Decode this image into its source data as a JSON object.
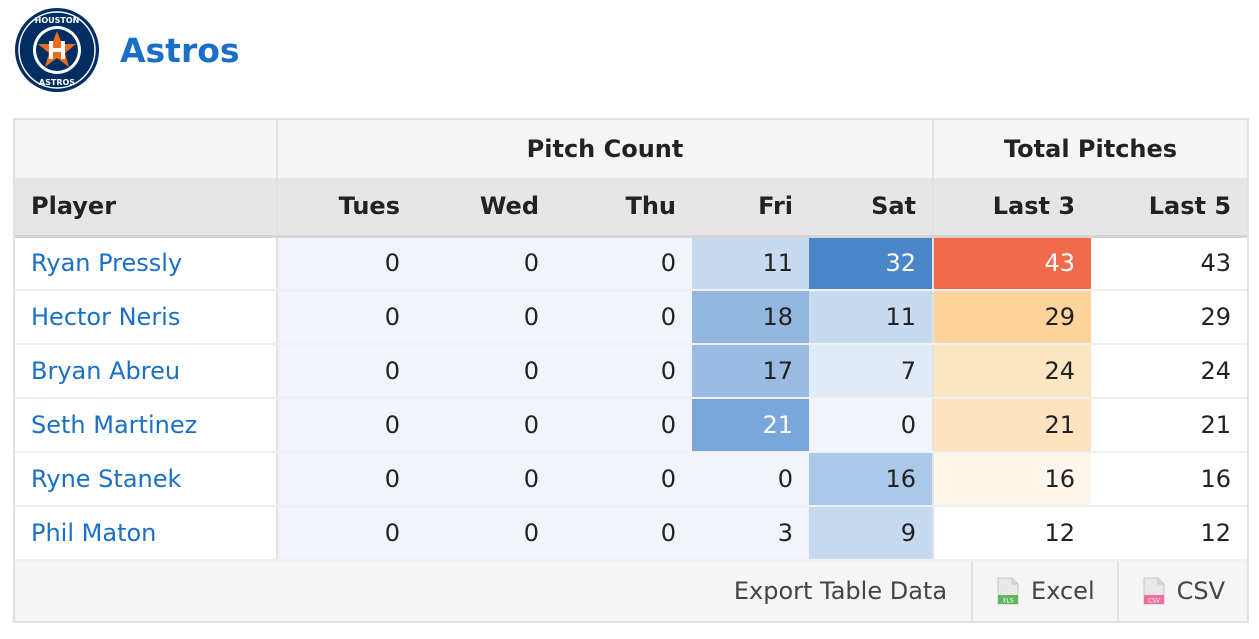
{
  "team": {
    "name": "Astros",
    "logo_top_text": "HOUSTON",
    "logo_bottom_text": "ASTROS",
    "logo_icon": "astros-logo-icon",
    "colors": {
      "navy": "#002d62",
      "orange": "#eb6e1f"
    }
  },
  "table": {
    "group_headers": {
      "pitch_count": "Pitch Count",
      "total_pitches": "Total Pitches"
    },
    "columns": {
      "player": "Player",
      "tues": "Tues",
      "wed": "Wed",
      "thu": "Thu",
      "fri": "Fri",
      "sat": "Sat",
      "last3": "Last 3",
      "last5": "Last 5"
    },
    "rows": [
      {
        "player": "Ryan Pressly",
        "tues": "0",
        "wed": "0",
        "thu": "0",
        "fri": "11",
        "sat": "32",
        "last3": "43",
        "last5": "43",
        "fri_bg": "#c8daf0",
        "sat_bg": "#4a86c8",
        "last3_bg": "#f06a4b",
        "fri_fg": "#222222",
        "sat_fg": "#ffffff",
        "last3_fg": "#ffffff"
      },
      {
        "player": "Hector Neris",
        "tues": "0",
        "wed": "0",
        "thu": "0",
        "fri": "18",
        "sat": "11",
        "last3": "29",
        "last5": "29",
        "fri_bg": "#93b7df",
        "sat_bg": "#c8daf0",
        "last3_bg": "#fdd49c",
        "fri_fg": "#222222",
        "sat_fg": "#222222",
        "last3_fg": "#222222"
      },
      {
        "player": "Bryan Abreu",
        "tues": "0",
        "wed": "0",
        "thu": "0",
        "fri": "17",
        "sat": "7",
        "last3": "24",
        "last5": "24",
        "fri_bg": "#9bbce2",
        "sat_bg": "#e1ebf7",
        "last3_bg": "#fde6c4",
        "fri_fg": "#222222",
        "sat_fg": "#222222",
        "last3_fg": "#222222"
      },
      {
        "player": "Seth Martinez",
        "tues": "0",
        "wed": "0",
        "thu": "0",
        "fri": "21",
        "sat": "0",
        "last3": "21",
        "last5": "21",
        "fri_bg": "#7aa7d9",
        "sat_bg": "#f1f5fb",
        "last3_bg": "#fde3c0",
        "fri_fg": "#ffffff",
        "sat_fg": "#222222",
        "last3_fg": "#222222"
      },
      {
        "player": "Ryne Stanek",
        "tues": "0",
        "wed": "0",
        "thu": "0",
        "fri": "0",
        "sat": "16",
        "last3": "16",
        "last5": "16",
        "fri_bg": "#f1f5fb",
        "sat_bg": "#abc8e8",
        "last3_bg": "#fef5eb",
        "fri_fg": "#222222",
        "sat_fg": "#222222",
        "last3_fg": "#222222"
      },
      {
        "player": "Phil Maton",
        "tues": "0",
        "wed": "0",
        "thu": "0",
        "fri": "3",
        "sat": "9",
        "last3": "12",
        "last5": "12",
        "fri_bg": "#f1f5fb",
        "sat_bg": "#c8daf0",
        "last3_bg": "#ffffff",
        "fri_fg": "#222222",
        "sat_fg": "#222222",
        "last3_fg": "#222222"
      }
    ]
  },
  "footer": {
    "export_label": "Export Table Data",
    "excel_label": "Excel",
    "excel_icon_text": "XLS",
    "csv_label": "CSV",
    "csv_icon_text": "CSV",
    "excel_icon": "excel-file-icon",
    "csv_icon": "csv-file-icon"
  }
}
